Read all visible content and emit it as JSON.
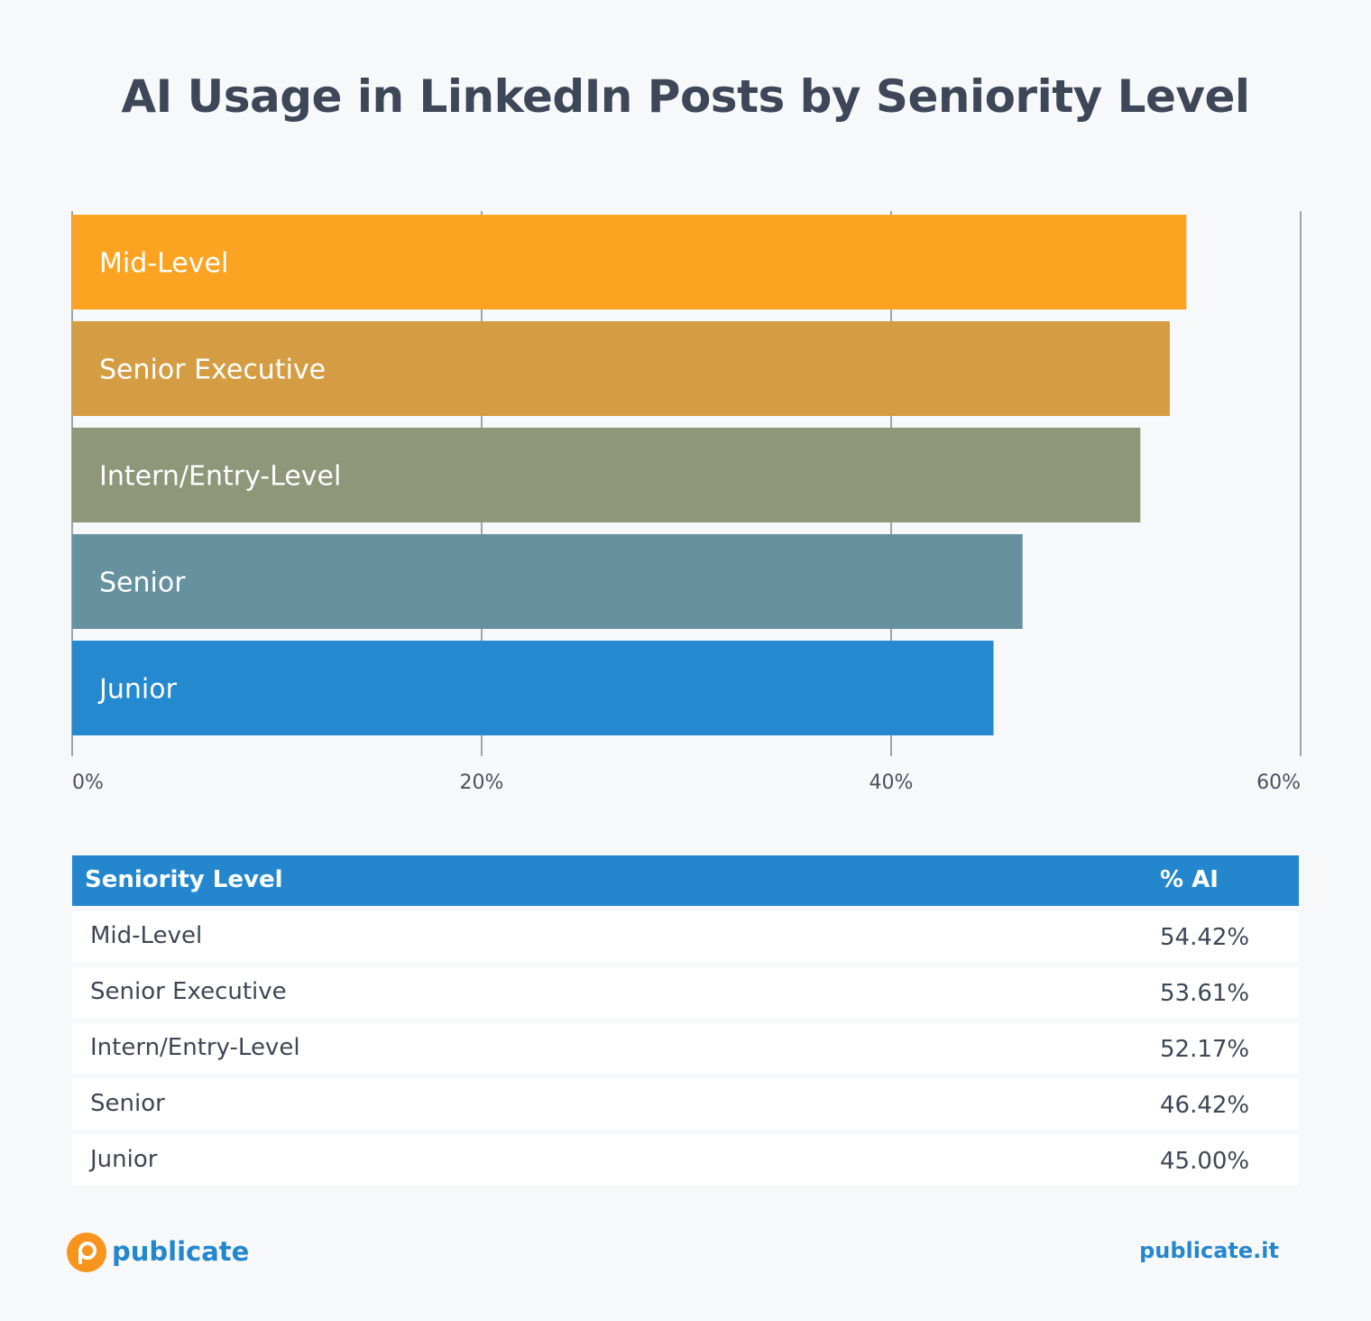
{
  "chart_data": {
    "type": "bar",
    "orientation": "horizontal",
    "title": "AI Usage in LinkedIn Posts by Seniority Level",
    "categories": [
      "Mid-Level",
      "Senior Executive",
      "Intern/Entry-Level",
      "Senior",
      "Junior"
    ],
    "values": [
      54.42,
      53.61,
      52.17,
      46.42,
      45.0
    ],
    "colors": [
      "#fca321",
      "#d59d43",
      "#8f967a",
      "#66929f",
      "#2489cf"
    ],
    "xlim": [
      0,
      60
    ],
    "x_ticks": [
      "0%",
      "20%",
      "40%",
      "60%"
    ],
    "grid": true
  },
  "table": {
    "headers": [
      "Seniority Level",
      "% AI"
    ],
    "rows": [
      [
        "Mid-Level",
        "54.42%"
      ],
      [
        "Senior Executive",
        "53.61%"
      ],
      [
        "Intern/Entry-Level",
        "52.17%"
      ],
      [
        "Senior",
        "46.42%"
      ],
      [
        "Junior",
        "45.00%"
      ]
    ]
  },
  "footer": {
    "brand": "publicate",
    "url": "publicate.it",
    "brand_color": "#2487cd",
    "logo_color": "#f7941d"
  }
}
